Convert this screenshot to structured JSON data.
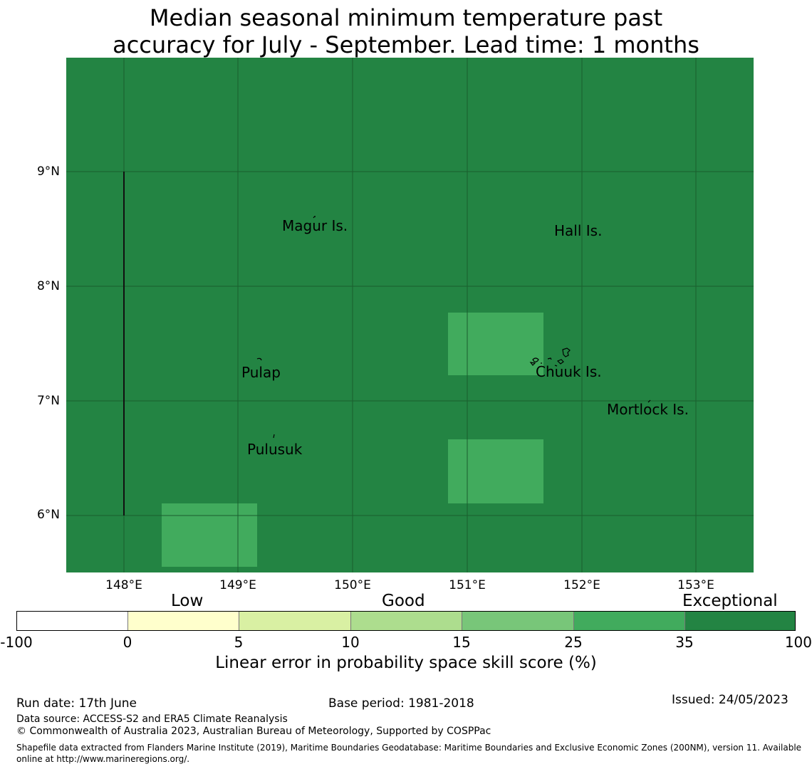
{
  "title_line1": "Median seasonal minimum temperature past",
  "title_line2": "accuracy for July - September. Lead time: 1 months",
  "lat_labels": [
    "9°N",
    "8°N",
    "7°N",
    "6°N"
  ],
  "lon_labels": [
    "148°E",
    "149°E",
    "150°E",
    "151°E",
    "152°E",
    "153°E"
  ],
  "places": {
    "magur": "Magur Is.",
    "hall": "Hall Is.",
    "pulap": "Pulap",
    "chuuk": "Chuuk Is.",
    "mortlock": "Mortlock Is.",
    "pulusuk": "Pulusuk"
  },
  "colors": {
    "exceptional": "#238443",
    "skill_25_35": "#41ab5d",
    "skill_15_25": "#78c679",
    "skill_10_15": "#addd8e",
    "skill_5_10": "#d9f0a3",
    "skill_0_5": "#ffffcc",
    "skill_neg": "#ffffff"
  },
  "map_cells": [
    {
      "label": "Chuuk area north cell",
      "category": "25-35"
    },
    {
      "label": "Chuuk area south cell",
      "category": "25-35"
    },
    {
      "label": "South-west cell",
      "category": "25-35"
    }
  ],
  "skill_labels": {
    "low": "Low",
    "good": "Good",
    "exceptional": "Exceptional"
  },
  "colorbar_ticks": [
    "-100",
    "0",
    "5",
    "10",
    "15",
    "25",
    "35",
    "100"
  ],
  "colorbar_label": "Linear error in probability space skill score (%)",
  "footer": {
    "run_date": "Run date: 17th June",
    "base_period": "Base period: 1981-2018",
    "issued": "Issued: 24/05/2023",
    "data_source": "Data source: ACCESS-S2 and ERA5 Climate Reanalysis",
    "copyright": "© Commonwealth of Australia 2023, Australian Bureau of Meteorology, Supported by COSPPac",
    "shapefile": "Shapefile data extracted from Flanders Marine Institute (2019), Maritime Boundaries Geodatabase: Maritime Boundaries and Exclusive Economic Zones (200NM), version 11. Available online at http://www.marineregions.org/."
  }
}
